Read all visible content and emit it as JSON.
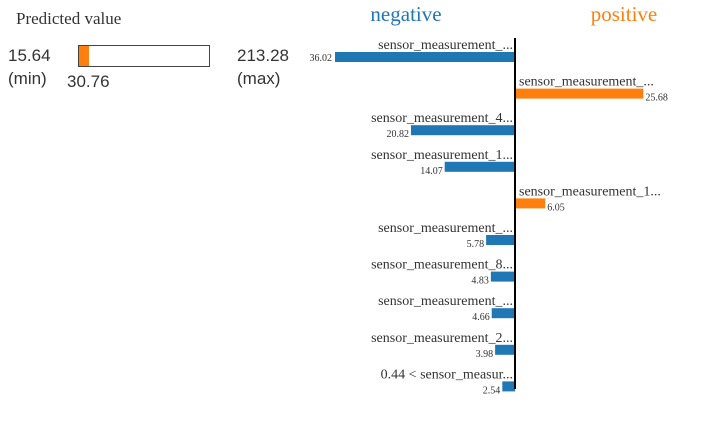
{
  "predicted": {
    "title": "Predicted value",
    "min_value": "15.64",
    "min_label": "(min)",
    "max_value": "213.28",
    "max_label": "(max)",
    "value": "30.76",
    "min": 15.64,
    "max": 213.28,
    "current": 30.76,
    "fill_color": "#ff7f0e"
  },
  "chart_data": {
    "type": "bar",
    "orientation": "horizontal",
    "headers": {
      "negative": "negative",
      "positive": "positive"
    },
    "colors": {
      "negative": "#1f77b4",
      "positive": "#ff7f0e"
    },
    "features": [
      {
        "label": "sensor_measurement_...",
        "value": -36.02,
        "value_label": "36.02"
      },
      {
        "label": "sensor_measurement_...",
        "value": 25.68,
        "value_label": "25.68"
      },
      {
        "label": "sensor_measurement_4...",
        "value": -20.82,
        "value_label": "20.82"
      },
      {
        "label": "sensor_measurement_1...",
        "value": -14.07,
        "value_label": "14.07"
      },
      {
        "label": "sensor_measurement_1...",
        "value": 6.05,
        "value_label": "6.05"
      },
      {
        "label": "sensor_measurement_...",
        "value": -5.78,
        "value_label": "5.78"
      },
      {
        "label": "sensor_measurement_8...",
        "value": -4.83,
        "value_label": "4.83"
      },
      {
        "label": "sensor_measurement_...",
        "value": -4.66,
        "value_label": "4.66"
      },
      {
        "label": "sensor_measurement_2...",
        "value": -3.98,
        "value_label": "3.98"
      },
      {
        "label": "0.44 < sensor_measur...",
        "value": -2.54,
        "value_label": "2.54"
      }
    ]
  }
}
